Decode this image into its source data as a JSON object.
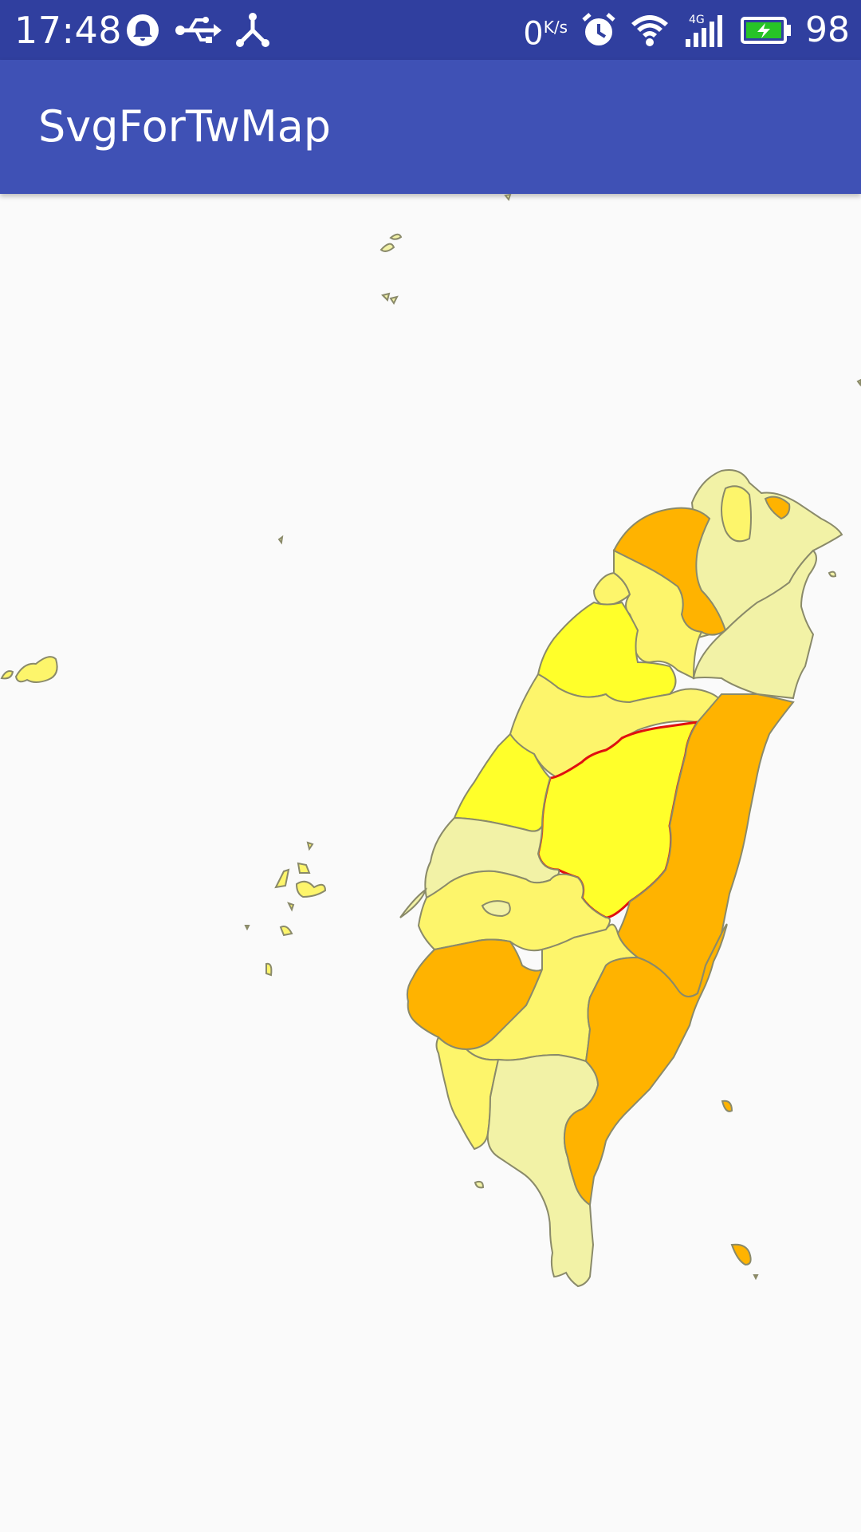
{
  "status_bar": {
    "time": "17:48",
    "network_speed": "0",
    "network_speed_unit": "K/s",
    "battery_percent": "98",
    "network_type": "4G",
    "icons": [
      "notification-bell-icon",
      "usb-icon",
      "debug-bridge-icon",
      "alarm-icon",
      "wifi-icon",
      "signal-icon",
      "battery-charging-icon"
    ]
  },
  "app_bar": {
    "title": "SvgForTwMap"
  },
  "map": {
    "colors": {
      "light": "#f2f2a6",
      "medium": "#fdf56b",
      "bright": "#ffff2a",
      "orange": "#ffb300",
      "border": "#8a8a6a",
      "selected_border": "#e01010"
    },
    "selected_region": "central-region"
  }
}
